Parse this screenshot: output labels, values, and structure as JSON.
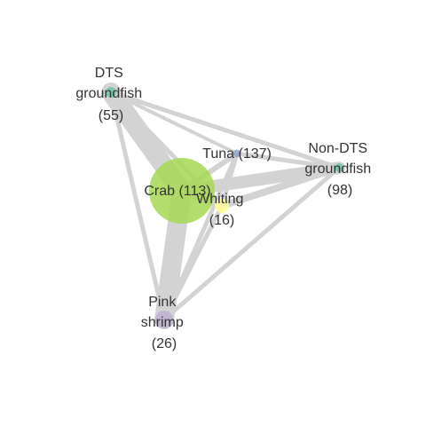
{
  "diagram": {
    "nodes": [
      {
        "id": "dts",
        "label_lines": [
          "DTS",
          "groundfish",
          "(55)"
        ],
        "color": "#66c2a5"
      },
      {
        "id": "tuna",
        "label_lines": [
          "Tuna (137)"
        ],
        "color": "#8da0cb"
      },
      {
        "id": "nondts",
        "label_lines": [
          "Non-DTS",
          "groundfish",
          "(98)"
        ],
        "color": "#66c2a5"
      },
      {
        "id": "crab",
        "label_lines": [
          "Crab (113)"
        ],
        "color": "#a6d854"
      },
      {
        "id": "whiting",
        "label_lines": [
          "Whiting",
          "(16)"
        ],
        "color": "#ffff99"
      },
      {
        "id": "shrimp",
        "label_lines": [
          "Pink",
          "shrimp",
          "(26)"
        ],
        "color": "#beaed4"
      }
    ],
    "edge_color": "#d3d3d3"
  }
}
